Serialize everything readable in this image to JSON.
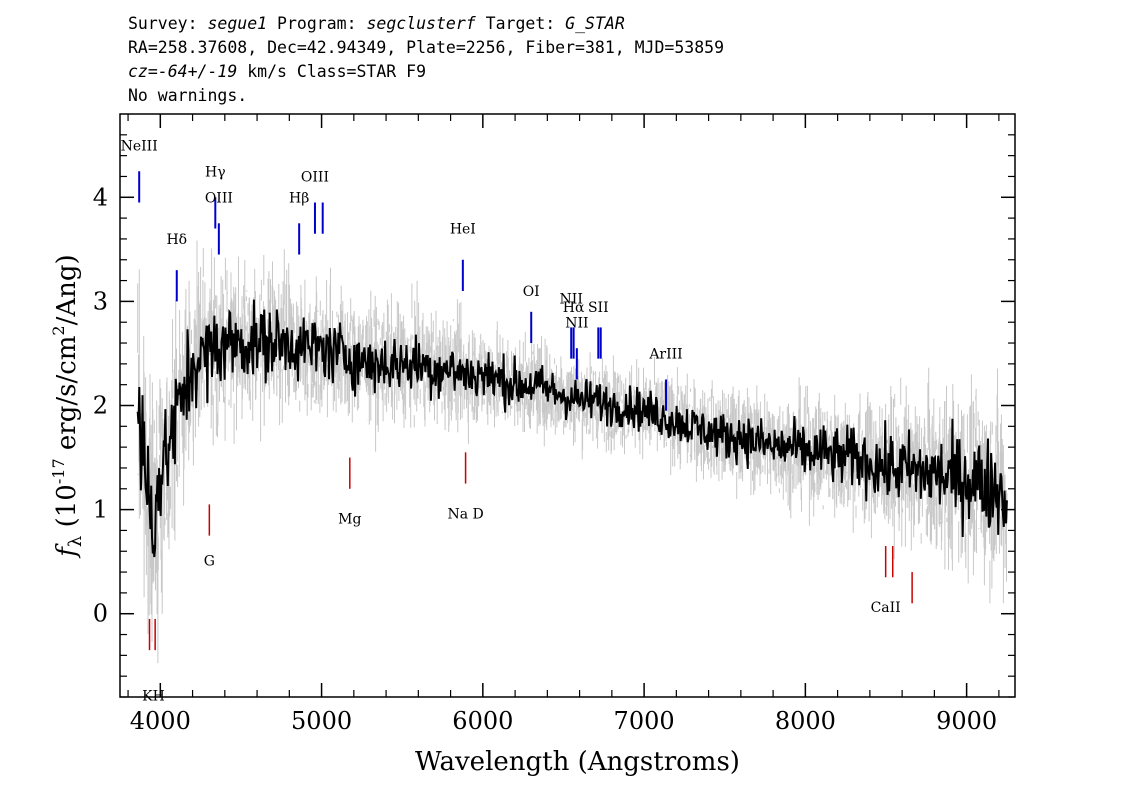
{
  "header": {
    "line1": {
      "survey_label": "Survey:",
      "survey": "segue1",
      "program_label": "Program:",
      "program": "segclusterf",
      "target_label": "Target:",
      "target": "G_STAR"
    },
    "line2": "RA=258.37608, Dec=42.94349, Plate=2256, Fiber=381, MJD=53859",
    "line3": {
      "cz": "cz=-64+/-19",
      "rest": " km/s Class=STAR F9"
    },
    "line4": "No warnings."
  },
  "chart_data": {
    "type": "line",
    "xlabel": "Wavelength (Angstroms)",
    "ylabel": "f_λ (10^-17 erg/s/cm^2/Ang)",
    "xlim": [
      3750,
      9300
    ],
    "ylim": [
      -0.8,
      4.8
    ],
    "xticks": [
      4000,
      5000,
      6000,
      7000,
      8000,
      9000
    ],
    "yticks": [
      0,
      1,
      2,
      3,
      4
    ],
    "colors": {
      "spectrum": "#000000",
      "noise": "#c8c8c8",
      "emission": "#0000cc",
      "absorption": "#cc0000"
    },
    "series": [
      {
        "style": "smoothed",
        "x": [
          3860,
          3900,
          3950,
          4000,
          4100,
          4200,
          4300,
          4400,
          4500,
          4600,
          4700,
          4800,
          4900,
          5000,
          5100,
          5200,
          5300,
          5400,
          5500,
          5600,
          5700,
          5800,
          5900,
          6000,
          6100,
          6200,
          6300,
          6400,
          6500,
          6600,
          6700,
          6800,
          6900,
          7000,
          7100,
          7200,
          7300,
          7400,
          7500,
          7600,
          7700,
          7800,
          7900,
          8000,
          8100,
          8200,
          8300,
          8400,
          8500,
          8600,
          8700,
          8800,
          8900,
          9000,
          9100,
          9200,
          9250
        ],
        "y": [
          2.0,
          1.4,
          0.9,
          1.3,
          1.9,
          2.4,
          2.5,
          2.6,
          2.6,
          2.6,
          2.6,
          2.6,
          2.55,
          2.55,
          2.5,
          2.45,
          2.4,
          2.4,
          2.4,
          2.4,
          2.35,
          2.35,
          2.3,
          2.3,
          2.25,
          2.2,
          2.2,
          2.15,
          2.1,
          2.05,
          2.05,
          2.0,
          2.0,
          1.95,
          1.9,
          1.85,
          1.8,
          1.75,
          1.7,
          1.7,
          1.65,
          1.6,
          1.6,
          1.55,
          1.55,
          1.5,
          1.5,
          1.45,
          1.4,
          1.4,
          1.35,
          1.35,
          1.3,
          1.3,
          1.25,
          1.2,
          1.1
        ]
      },
      {
        "style": "noise",
        "x": [
          3860,
          3900,
          4000,
          4100,
          4200,
          4400,
          4600,
          4800,
          5000,
          5200,
          5400,
          5600,
          5800,
          6000,
          6200,
          6400,
          6600,
          6800,
          7000,
          7200,
          7400,
          7600,
          7800,
          8000,
          8200,
          8400,
          8600,
          8800,
          9000,
          9200,
          9250
        ],
        "y": [
          0.9,
          0.8,
          0.7,
          0.6,
          0.55,
          0.5,
          0.45,
          0.42,
          0.4,
          0.38,
          0.36,
          0.35,
          0.34,
          0.32,
          0.3,
          0.28,
          0.27,
          0.26,
          0.26,
          0.27,
          0.28,
          0.3,
          0.32,
          0.34,
          0.37,
          0.4,
          0.45,
          0.5,
          0.55,
          0.6,
          0.65
        ]
      }
    ],
    "emission_lines": [
      {
        "label": "NeIII",
        "x": 3869,
        "y": 4.25,
        "label_y": 4.45
      },
      {
        "label": "Hδ",
        "x": 4102,
        "y": 3.3,
        "label_y": 3.55
      },
      {
        "label": "Hγ",
        "x": 4341,
        "y": 4.0,
        "label_y": 4.2
      },
      {
        "label": "OIII",
        "x": 4363,
        "y": 3.75,
        "label_y": 3.95
      },
      {
        "label": "Hβ",
        "x": 4861,
        "y": 3.75,
        "label_y": 3.95
      },
      {
        "label": "OIII",
        "x": 4959,
        "y": 3.95,
        "label_y": 4.15
      },
      {
        "label": "OIII",
        "x": 5007,
        "y": 3.95,
        "label_y": 4.15
      },
      {
        "label": "HeI",
        "x": 5876,
        "y": 3.4,
        "label_y": 3.65
      },
      {
        "label": "OI",
        "x": 6300,
        "y": 2.9,
        "label_y": 3.05
      },
      {
        "label": "NII",
        "x": 6548,
        "y": 2.75,
        "label_y": 2.98
      },
      {
        "label": "Hα",
        "x": 6563,
        "y": 2.75,
        "label_y": 2.9
      },
      {
        "label": "NII",
        "x": 6583,
        "y": 2.55,
        "label_y": 2.75
      },
      {
        "label": "SII",
        "x": 6716,
        "y": 2.75,
        "label_y": 2.9
      },
      {
        "label": "SII",
        "x": 6731,
        "y": 2.75,
        "label_y": 2.9
      },
      {
        "label": "ArIII",
        "x": 7136,
        "y": 2.25,
        "label_y": 2.45
      }
    ],
    "absorption_lines": [
      {
        "label": "KH",
        "x": 3933,
        "y": -0.35,
        "label_y": -0.7
      },
      {
        "label": "KH",
        "x": 3968,
        "y": -0.35,
        "label_y": -0.7
      },
      {
        "label": "G",
        "x": 4304,
        "y": 0.75,
        "label_y": 0.6
      },
      {
        "label": "Mg",
        "x": 5175,
        "y": 1.2,
        "label_y": 1.0
      },
      {
        "label": "Na D",
        "x": 5893,
        "y": 1.25,
        "label_y": 1.05
      },
      {
        "label": "CaII",
        "x": 8498,
        "y": 0.35,
        "label_y": 0.15
      },
      {
        "label": "CaII",
        "x": 8542,
        "y": 0.35,
        "label_y": 0.15
      },
      {
        "label": "CaII",
        "x": 8662,
        "y": 0.1,
        "label_y": 0.15
      }
    ]
  }
}
